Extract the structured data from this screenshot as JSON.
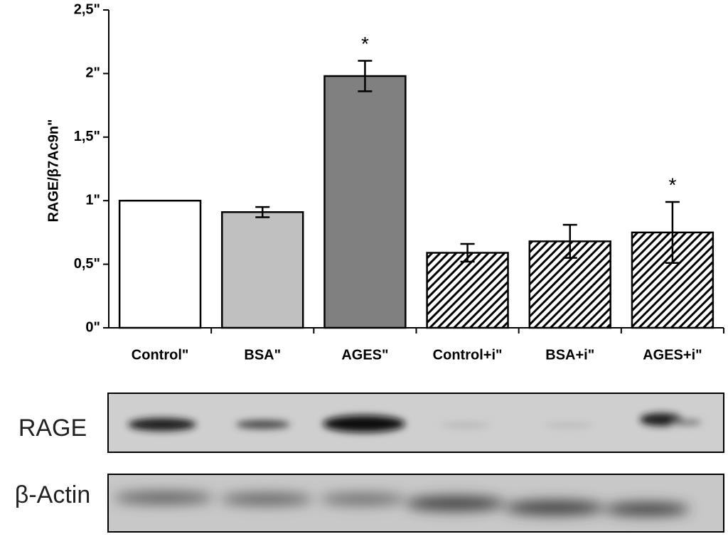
{
  "chart_data": {
    "type": "bar",
    "y_label": "RAGE/β7Ac9n\"",
    "categories": [
      "Control\"",
      "BSA\"",
      "AGES\"",
      "Control+i\"",
      "BSA+i\"",
      "AGES+i\""
    ],
    "values": [
      1.0,
      0.91,
      1.98,
      0.59,
      0.68,
      0.75
    ],
    "errors": [
      null,
      0.04,
      0.12,
      0.07,
      0.13,
      0.24
    ],
    "colors": [
      "#ffffff",
      "#c0c0c0",
      "#808080",
      "#ffffff",
      "#ffffff",
      "#ffffff"
    ],
    "hatched": [
      false,
      false,
      false,
      true,
      true,
      true
    ],
    "annotations": [
      {
        "text": "*",
        "category": "AGES\""
      },
      {
        "text": "*",
        "category": "AGES+i\""
      }
    ],
    "ylim": [
      0,
      2.5
    ],
    "yticks": [
      {
        "value": 0,
        "label": "0\""
      },
      {
        "value": 0.5,
        "label": "0,5\""
      },
      {
        "value": 1,
        "label": "1\""
      },
      {
        "value": 1.5,
        "label": "1,5\""
      },
      {
        "value": 2,
        "label": "2\""
      },
      {
        "value": 2.5,
        "label": "2,5\""
      }
    ]
  },
  "blot": {
    "labels": [
      "RAGE",
      "β-Actin"
    ]
  }
}
